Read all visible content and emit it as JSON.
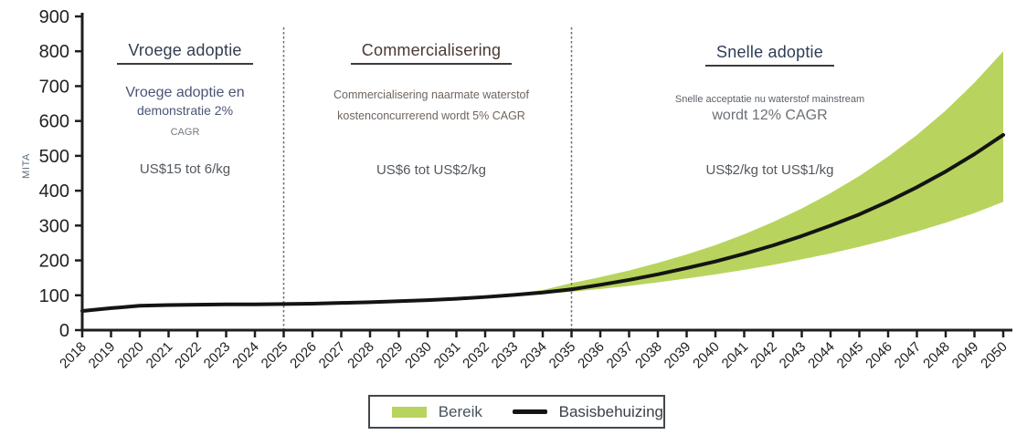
{
  "y_axis": {
    "label": "MITA"
  },
  "phases": [
    {
      "title": "Vroege adoptie",
      "desc_lines": [
        "Vroege adoptie en",
        "demonstratie 2%",
        "CAGR"
      ],
      "price": "US$15 tot 6/kg"
    },
    {
      "title": "Commercialisering",
      "desc_lines": [
        "Commercialisering naarmate waterstof",
        "kostenconcurrerend wordt 5% CAGR"
      ],
      "price": "US$6 tot US$2/kg"
    },
    {
      "title": "Snelle adoptie",
      "desc_lines": [
        "Snelle acceptatie nu waterstof mainstream",
        "wordt 12% CAGR"
      ],
      "price": "US$2/kg tot US$1/kg"
    }
  ],
  "legend": {
    "range_label": "Bereik",
    "base_label": "Basisbehuizing",
    "range_color": "#b8d45e",
    "base_color": "#141414"
  },
  "chart_data": {
    "type": "area",
    "title": "",
    "xlabel": "",
    "ylabel": "MITA",
    "ylim": [
      0,
      900
    ],
    "yticks": [
      0,
      100,
      200,
      300,
      400,
      500,
      600,
      700,
      800,
      900
    ],
    "x": [
      2018,
      2019,
      2020,
      2021,
      2022,
      2023,
      2024,
      2025,
      2026,
      2027,
      2028,
      2029,
      2030,
      2031,
      2032,
      2033,
      2034,
      2035,
      2036,
      2037,
      2038,
      2039,
      2040,
      2041,
      2042,
      2043,
      2044,
      2045,
      2046,
      2047,
      2048,
      2049,
      2050
    ],
    "phase_boundaries": [
      2025,
      2035
    ],
    "grid": false,
    "legend_position": "bottom",
    "series": [
      {
        "name": "Basisbehuizing",
        "kind": "line",
        "color": "#141414",
        "values": [
          55,
          63,
          70,
          72,
          73,
          74,
          74,
          75,
          76,
          78,
          80,
          83,
          86,
          90,
          95,
          101,
          108,
          117,
          130,
          144,
          160,
          178,
          197,
          219,
          243,
          270,
          300,
          332,
          369,
          410,
          455,
          505,
          560
        ]
      },
      {
        "name": "Bereik",
        "kind": "band",
        "color": "#b8d45e",
        "low": [
          55,
          63,
          70,
          72,
          73,
          74,
          74,
          75,
          76,
          78,
          80,
          83,
          86,
          90,
          94,
          99,
          104,
          110,
          118,
          127,
          137,
          148,
          160,
          173,
          187,
          203,
          220,
          239,
          260,
          283,
          308,
          336,
          368
        ],
        "high": [
          55,
          63,
          70,
          72,
          73,
          74,
          74,
          75,
          76,
          78,
          80,
          83,
          86,
          90,
          97,
          105,
          115,
          135,
          152,
          171,
          193,
          217,
          244,
          275,
          310,
          349,
          393,
          442,
          498,
          560,
          630,
          710,
          800
        ]
      }
    ]
  }
}
